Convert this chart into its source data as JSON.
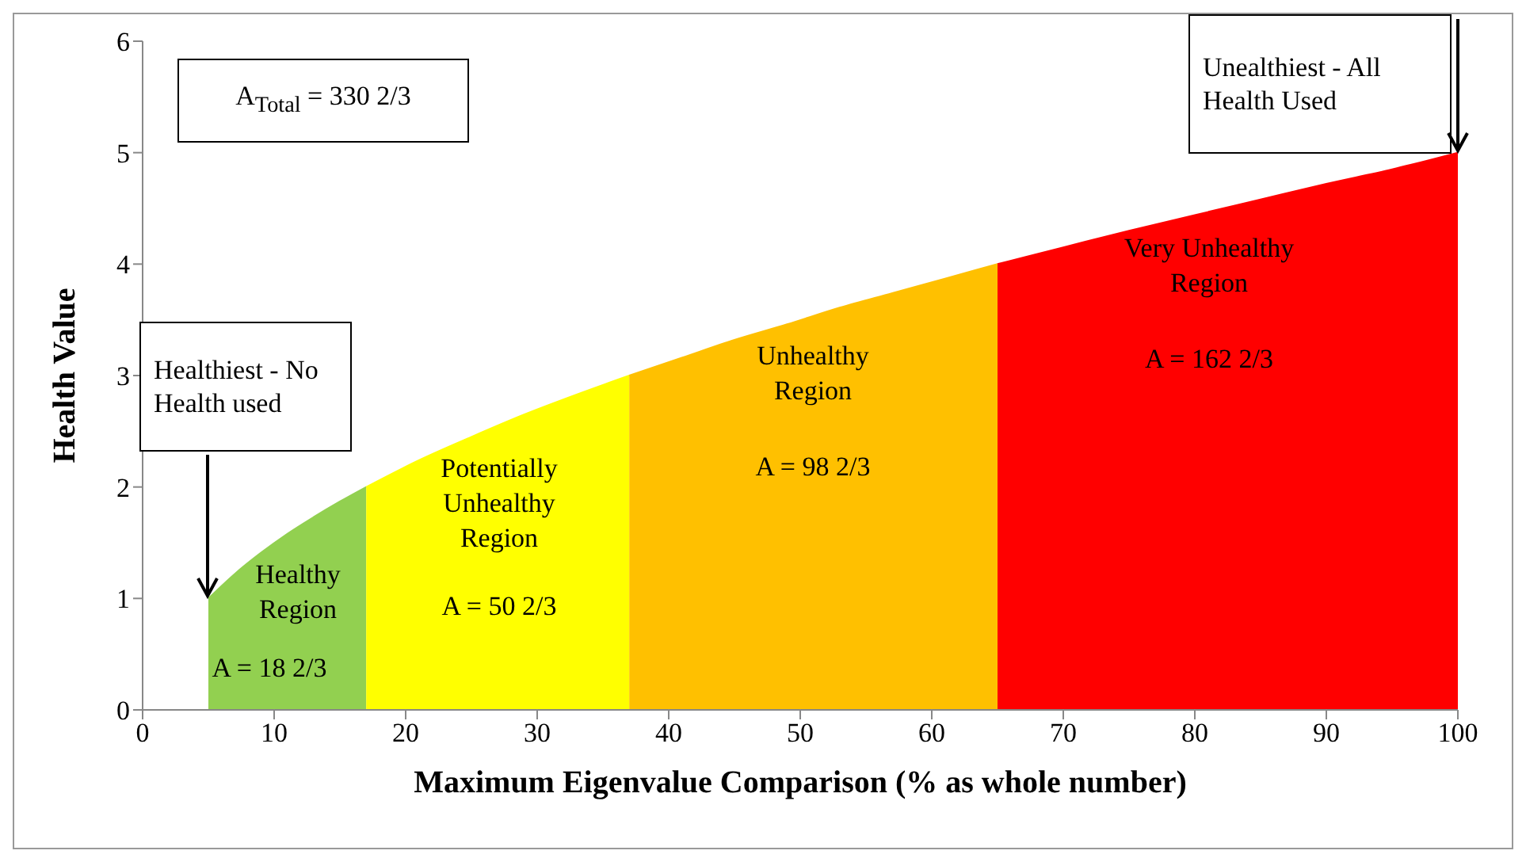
{
  "chart_data": {
    "type": "area",
    "xlabel": "Maximum Eigenvalue Comparison (% as whole number)",
    "ylabel": "Health Value",
    "xlim": [
      0,
      100
    ],
    "ylim": [
      0,
      6
    ],
    "xticks": [
      0,
      10,
      20,
      30,
      40,
      50,
      60,
      70,
      80,
      90,
      100
    ],
    "yticks": [
      0,
      1,
      2,
      3,
      4,
      5,
      6
    ],
    "series": [
      {
        "color": "#92d050",
        "x": [
          5,
          7,
          9,
          11,
          13,
          15,
          17
        ],
        "values": [
          1,
          1.22,
          1.41,
          1.58,
          1.73,
          1.87,
          2
        ]
      },
      {
        "color": "#ffff00",
        "x": [
          17,
          21,
          25,
          29,
          33,
          37
        ],
        "values": [
          2,
          2.24,
          2.45,
          2.65,
          2.83,
          3
        ]
      },
      {
        "color": "#ffc000",
        "x": [
          37,
          41,
          45,
          49,
          53,
          57,
          61,
          65
        ],
        "values": [
          3,
          3.16,
          3.32,
          3.46,
          3.61,
          3.74,
          3.87,
          4
        ]
      },
      {
        "color": "#ff0000",
        "x": [
          65,
          70,
          75,
          80,
          85,
          90,
          95,
          100
        ],
        "values": [
          4,
          4.15,
          4.3,
          4.44,
          4.58,
          4.72,
          4.85,
          5
        ]
      }
    ],
    "annotations": [
      "A$_{Total}$ = 330 2/3",
      "Healthiest - No Health used",
      "Unealthiest - All Health Used",
      "Healthy Region",
      "A = 18 2/3",
      "Potentially Unhealthy Region",
      "A = 50 2/3",
      "Unhealthy Region",
      "A = 98 2/3",
      "Very Unhealthy Region",
      "A = 162 2/3"
    ]
  }
}
